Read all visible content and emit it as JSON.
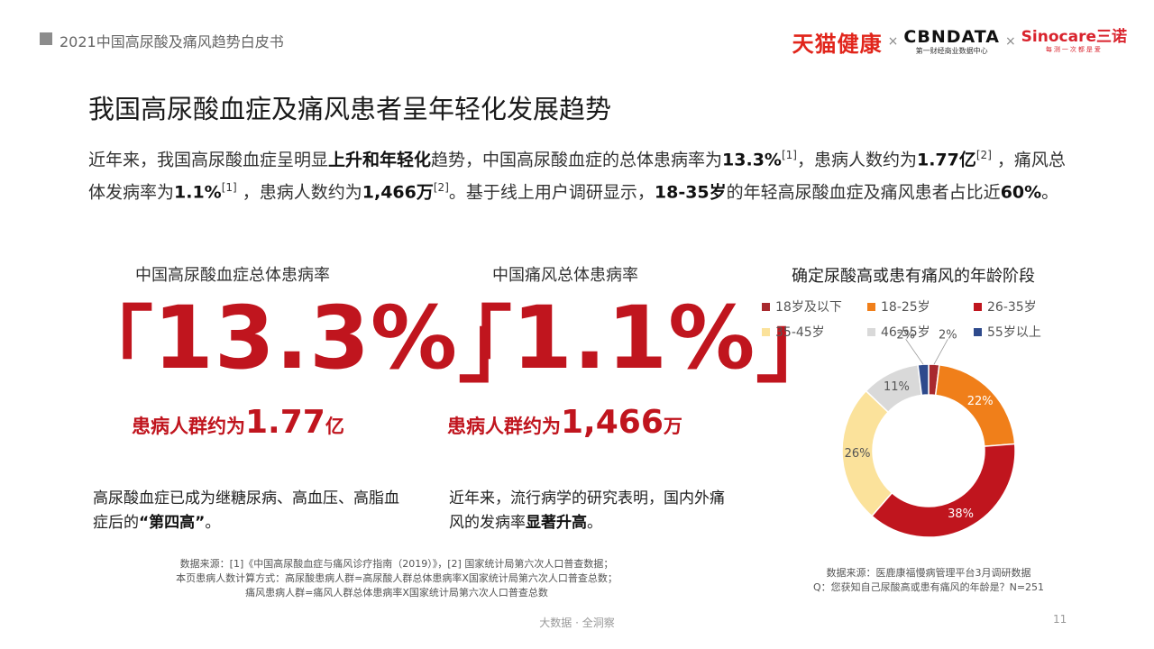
{
  "header": {
    "title": "2021中国高尿酸及痛风趋势白皮书"
  },
  "logos": {
    "tmall": "天猫健康",
    "separator": "×",
    "cbndata_main": "CBNDATA",
    "cbndata_sub": "第一财经商业数据中心",
    "sinocare_main": "Sinocare三诺",
    "sinocare_sub": "每测一次都是爱"
  },
  "page_title": "我国高尿酸血症及痛风患者呈年轻化发展趋势",
  "intro": {
    "p1": "近年来，我国高尿酸血症呈明显",
    "b1": "上升和年轻化",
    "p2": "趋势，中国高尿酸血症的总体患病率为",
    "b2": "13.3%",
    "s1": "[1]",
    "p3": "，患病人数约为",
    "b3": "1.77亿",
    "s2": "[2]",
    "p4": " ，痛风总体发病率为",
    "b4": "1.1%",
    "s3": "[1]",
    "p5": " ，患病人数约为",
    "b5": "1,466万",
    "s4": "[2]",
    "p6": "。基于线上用户调研显示，",
    "b6": "18-35岁",
    "p7": "的年轻高尿酸血症及痛风患者占比近",
    "b7": "60%",
    "p8": "。"
  },
  "stat_left": {
    "label": "中国高尿酸血症总体患病率",
    "bracket_open": "「",
    "value": "13.3%",
    "bracket_close": "」",
    "sub_pre": "患病人群约为",
    "sub_val": "1.77",
    "sub_unit": "亿",
    "note_pre": "高尿酸血症已成为继糖尿病、高血压、高脂血症后的",
    "note_bold": "“第四高”",
    "note_post": "。"
  },
  "stat_mid": {
    "label": "中国痛风总体患病率",
    "bracket_open": "「",
    "value": "1.1%",
    "bracket_close": "」",
    "sub_pre": "患病人群约为",
    "sub_val": "1,466",
    "sub_unit": "万",
    "note_pre": "近年来，流行病学的研究表明，国内外痛风的发病率",
    "note_bold": "显著升高",
    "note_post": "。"
  },
  "sources_left": {
    "line1": "数据来源：[1]《中国高尿酸血症与痛风诊疗指南（2019）》，[2] 国家统计局第六次人口普查数据；",
    "line2": "本页患病人数计算方式：高尿酸患病人群=高尿酸人群总体患病率X国家统计局第六次人口普查总数；",
    "line3": "痛风患病人群=痛风人群总体患病率X国家统计局第六次人口普查总数"
  },
  "sources_right": {
    "line1": "数据来源：医鹿康福慢病管理平台3月调研数据",
    "line2": "Q：您获知自己尿酸高或患有痛风的年龄是？N=251"
  },
  "footer": {
    "center": "大数据 · 全洞察",
    "page": "11"
  },
  "chart_data": {
    "type": "donut",
    "title": "确定尿酸高或患有痛风的年龄阶段",
    "series": [
      {
        "name": "18岁及以下",
        "value": 2,
        "label": "2%",
        "color": "#a8292e"
      },
      {
        "name": "18-25岁",
        "value": 22,
        "label": "22%",
        "color": "#f07f1a"
      },
      {
        "name": "26-35岁",
        "value": 38,
        "label": "38%",
        "color": "#c0151e"
      },
      {
        "name": "35-45岁",
        "value": 26,
        "label": "26%",
        "color": "#fbe29b"
      },
      {
        "name": "46-55岁",
        "value": 11,
        "label": "11%",
        "color": "#d9d9d9"
      },
      {
        "name": "55岁以上",
        "value": 2,
        "label": "2%",
        "color": "#2e4a8c"
      }
    ],
    "legend_position": "top",
    "start": "top",
    "direction": "clockwise"
  }
}
